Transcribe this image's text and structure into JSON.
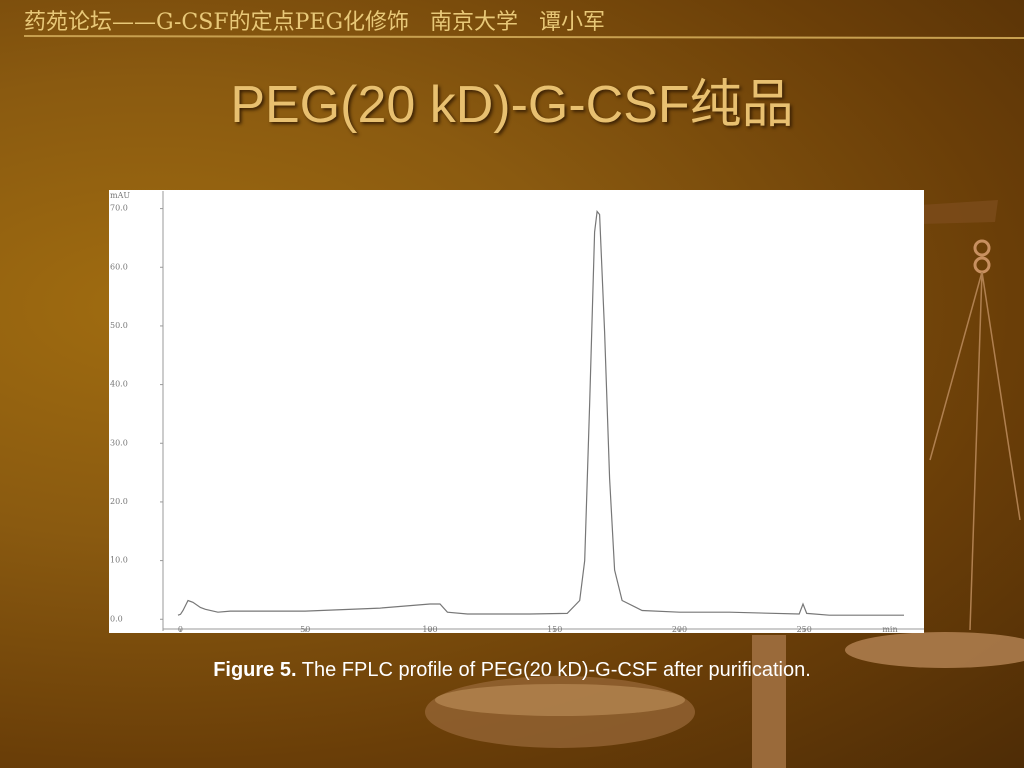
{
  "header": "药苑论坛——G-CSF的定点PEG化修饰   南京大学   谭小军",
  "title": "PEG(20 kD)-G-CSF纯品",
  "chart_data": {
    "type": "line",
    "y_label": "mAU",
    "x_label": "min",
    "x": [
      -1,
      0,
      1,
      3,
      5,
      8,
      10,
      15,
      20,
      30,
      50,
      80,
      100,
      104,
      107,
      115,
      140,
      155,
      160,
      162,
      164,
      166,
      167,
      168,
      170,
      172,
      174,
      177,
      185,
      200,
      220,
      248,
      249.5,
      251,
      260,
      290
    ],
    "series": [
      {
        "name": "FPLC profile",
        "color": "#777777",
        "values": [
          0.7,
          0.85,
          1.5,
          3.2,
          2.9,
          2.0,
          1.7,
          1.2,
          1.4,
          1.4,
          1.4,
          1.9,
          2.6,
          2.6,
          1.2,
          0.9,
          0.9,
          1.0,
          3.2,
          10,
          37,
          66,
          69.5,
          69,
          49,
          24,
          8.4,
          3.2,
          1.5,
          1.2,
          1.2,
          0.9,
          2.6,
          1.0,
          0.7,
          0.7
        ]
      }
    ],
    "xlim": [
      -7,
      298
    ],
    "ylim": [
      -2,
      73
    ],
    "xticks": [
      0,
      50,
      100,
      150,
      200,
      250
    ],
    "yticks": [
      {
        "value": 0,
        "label": "0.0"
      },
      {
        "value": 10,
        "label": "10.0"
      },
      {
        "value": 20,
        "label": "20.0"
      },
      {
        "value": 30,
        "label": "30.0"
      },
      {
        "value": 40,
        "label": "40.0"
      },
      {
        "value": 50,
        "label": "50.0"
      },
      {
        "value": 60,
        "label": "60.0"
      },
      {
        "value": 70,
        "label": "70.0"
      }
    ]
  },
  "caption": {
    "label": "Figure 5.",
    "text": "The FPLC profile of PEG(20 kD)-G-CSF after purification."
  }
}
